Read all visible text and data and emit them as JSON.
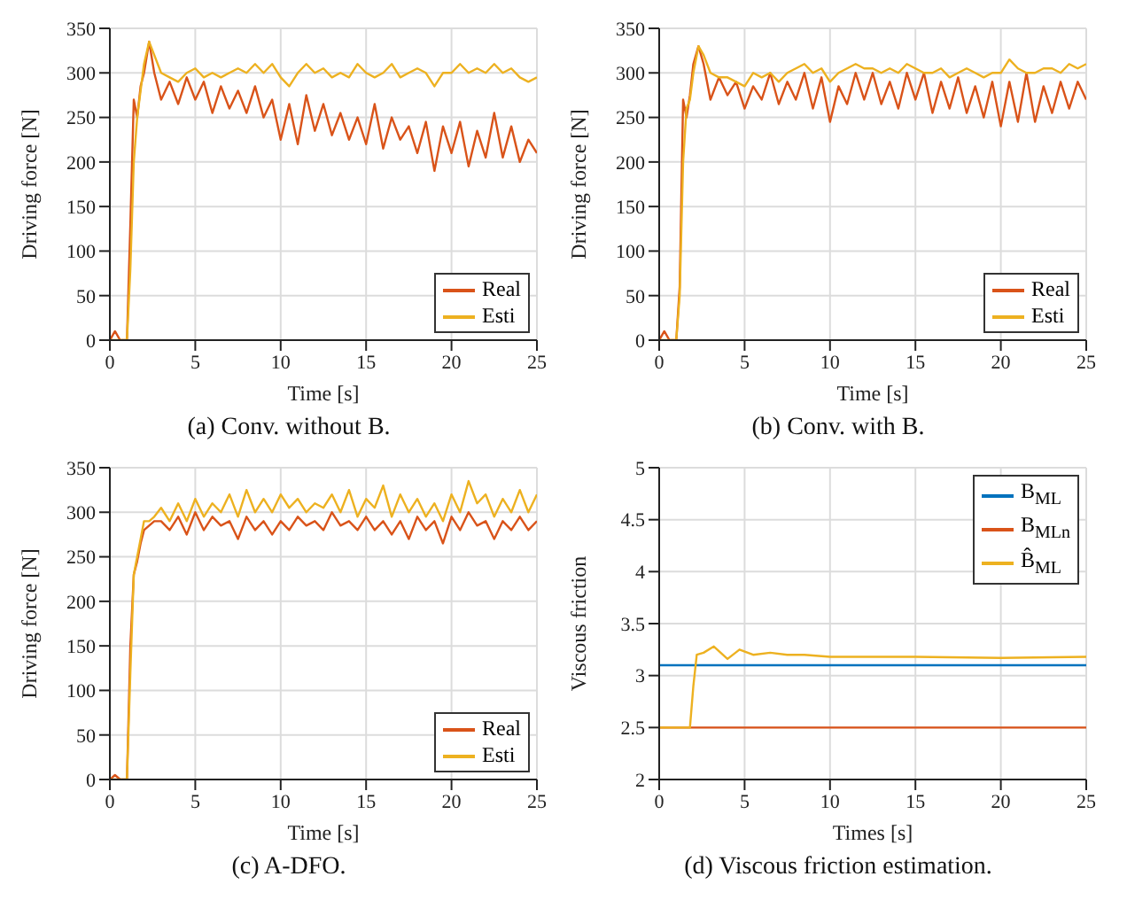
{
  "chart_data": [
    {
      "type": "line",
      "title": "(a) Conv. without B.",
      "xlabel": "Time [s]",
      "ylabel": "Driving force [N]",
      "xlim": [
        0,
        25
      ],
      "xticks": [
        0,
        5,
        10,
        15,
        20,
        25
      ],
      "ylim": [
        0,
        350
      ],
      "yticks": [
        0,
        50,
        100,
        150,
        200,
        250,
        300,
        350
      ],
      "grid": true,
      "legend": "bottom right",
      "x": [
        0,
        0.3,
        0.6,
        1.0,
        1.2,
        1.4,
        1.6,
        1.8,
        2.0,
        2.3,
        2.6,
        3.0,
        3.5,
        4.0,
        4.5,
        5.0,
        5.5,
        6.0,
        6.5,
        7.0,
        7.5,
        8.0,
        8.5,
        9.0,
        9.5,
        10.0,
        10.5,
        11.0,
        11.5,
        12.0,
        12.5,
        13.0,
        13.5,
        14.0,
        14.5,
        15.0,
        15.5,
        16.0,
        16.5,
        17.0,
        17.5,
        18.0,
        18.5,
        19.0,
        19.5,
        20.0,
        20.5,
        21.0,
        21.5,
        22.0,
        22.5,
        23.0,
        23.5,
        24.0,
        24.5,
        25.0
      ],
      "series": [
        {
          "name": "Real",
          "color": "#d95319",
          "values": [
            0,
            10,
            0,
            0,
            130,
            270,
            250,
            285,
            300,
            335,
            300,
            270,
            290,
            265,
            295,
            270,
            290,
            255,
            285,
            260,
            280,
            255,
            285,
            250,
            270,
            225,
            265,
            220,
            275,
            235,
            265,
            230,
            255,
            225,
            250,
            220,
            265,
            215,
            250,
            225,
            240,
            210,
            245,
            190,
            240,
            210,
            245,
            195,
            235,
            205,
            255,
            205,
            240,
            200,
            225,
            210
          ]
        },
        {
          "name": "Esti",
          "color": "#edb120",
          "values": [
            0,
            0,
            0,
            0,
            80,
            200,
            250,
            280,
            310,
            335,
            320,
            300,
            295,
            290,
            300,
            305,
            295,
            300,
            295,
            300,
            305,
            300,
            310,
            300,
            310,
            295,
            285,
            300,
            310,
            300,
            305,
            295,
            300,
            295,
            310,
            300,
            295,
            300,
            310,
            295,
            300,
            305,
            300,
            285,
            300,
            300,
            310,
            300,
            305,
            300,
            310,
            300,
            305,
            295,
            290,
            295
          ]
        }
      ]
    },
    {
      "type": "line",
      "title": "(b) Conv. with B.",
      "xlabel": "Time [s]",
      "ylabel": "Driving force [N]",
      "xlim": [
        0,
        25
      ],
      "xticks": [
        0,
        5,
        10,
        15,
        20,
        25
      ],
      "ylim": [
        0,
        350
      ],
      "yticks": [
        0,
        50,
        100,
        150,
        200,
        250,
        300,
        350
      ],
      "grid": true,
      "legend": "bottom right",
      "x": [
        0,
        0.3,
        0.6,
        1.0,
        1.2,
        1.4,
        1.6,
        1.8,
        2.0,
        2.3,
        2.6,
        3.0,
        3.5,
        4.0,
        4.5,
        5.0,
        5.5,
        6.0,
        6.5,
        7.0,
        7.5,
        8.0,
        8.5,
        9.0,
        9.5,
        10.0,
        10.5,
        11.0,
        11.5,
        12.0,
        12.5,
        13.0,
        13.5,
        14.0,
        14.5,
        15.0,
        15.5,
        16.0,
        16.5,
        17.0,
        17.5,
        18.0,
        18.5,
        19.0,
        19.5,
        20.0,
        20.5,
        21.0,
        21.5,
        22.0,
        22.5,
        23.0,
        23.5,
        24.0,
        24.5,
        25.0
      ],
      "series": [
        {
          "name": "Real",
          "color": "#d95319",
          "values": [
            0,
            10,
            0,
            0,
            60,
            270,
            250,
            275,
            310,
            330,
            310,
            270,
            295,
            275,
            290,
            260,
            285,
            270,
            300,
            265,
            290,
            270,
            300,
            260,
            295,
            245,
            285,
            265,
            300,
            270,
            300,
            265,
            290,
            260,
            300,
            270,
            300,
            255,
            290,
            260,
            295,
            255,
            285,
            250,
            290,
            240,
            290,
            245,
            300,
            245,
            285,
            255,
            290,
            260,
            290,
            270
          ]
        },
        {
          "name": "Esti",
          "color": "#edb120",
          "values": [
            0,
            0,
            0,
            0,
            50,
            200,
            260,
            270,
            300,
            330,
            320,
            300,
            295,
            295,
            290,
            285,
            300,
            295,
            300,
            290,
            300,
            305,
            310,
            300,
            305,
            290,
            300,
            305,
            310,
            305,
            305,
            300,
            305,
            300,
            310,
            305,
            300,
            300,
            305,
            295,
            300,
            305,
            300,
            295,
            300,
            300,
            315,
            305,
            300,
            300,
            305,
            305,
            300,
            310,
            305,
            310
          ]
        }
      ]
    },
    {
      "type": "line",
      "title": "(c) A-DFO.",
      "xlabel": "Time [s]",
      "ylabel": "Driving force [N]",
      "xlim": [
        0,
        25
      ],
      "xticks": [
        0,
        5,
        10,
        15,
        20,
        25
      ],
      "ylim": [
        0,
        350
      ],
      "yticks": [
        0,
        50,
        100,
        150,
        200,
        250,
        300,
        350
      ],
      "grid": true,
      "legend": "bottom right",
      "x": [
        0,
        0.3,
        0.6,
        1.0,
        1.2,
        1.4,
        1.6,
        1.8,
        2.0,
        2.3,
        2.6,
        3.0,
        3.5,
        4.0,
        4.5,
        5.0,
        5.5,
        6.0,
        6.5,
        7.0,
        7.5,
        8.0,
        8.5,
        9.0,
        9.5,
        10.0,
        10.5,
        11.0,
        11.5,
        12.0,
        12.5,
        13.0,
        13.5,
        14.0,
        14.5,
        15.0,
        15.5,
        16.0,
        16.5,
        17.0,
        17.5,
        18.0,
        18.5,
        19.0,
        19.5,
        20.0,
        20.5,
        21.0,
        21.5,
        22.0,
        22.5,
        23.0,
        23.5,
        24.0,
        24.5,
        25.0
      ],
      "series": [
        {
          "name": "Real",
          "color": "#d95319",
          "values": [
            0,
            5,
            0,
            0,
            150,
            230,
            245,
            265,
            280,
            285,
            290,
            290,
            280,
            295,
            275,
            300,
            280,
            295,
            285,
            290,
            270,
            295,
            280,
            290,
            275,
            290,
            280,
            295,
            285,
            290,
            280,
            300,
            285,
            290,
            280,
            295,
            280,
            290,
            275,
            290,
            270,
            295,
            280,
            290,
            265,
            295,
            280,
            300,
            285,
            290,
            270,
            290,
            280,
            295,
            280,
            290
          ]
        },
        {
          "name": "Esti",
          "color": "#edb120",
          "values": [
            0,
            0,
            0,
            0,
            120,
            230,
            250,
            270,
            290,
            290,
            295,
            305,
            290,
            310,
            290,
            315,
            295,
            310,
            300,
            320,
            295,
            325,
            300,
            315,
            300,
            320,
            305,
            315,
            300,
            310,
            305,
            320,
            300,
            325,
            295,
            315,
            305,
            330,
            295,
            320,
            300,
            315,
            295,
            310,
            290,
            320,
            300,
            335,
            310,
            320,
            295,
            315,
            300,
            325,
            300,
            320
          ]
        }
      ]
    },
    {
      "type": "line",
      "title": "(d) Viscous friction estimation.",
      "xlabel": "Times [s]",
      "ylabel": "Viscous friction",
      "xlim": [
        0,
        25
      ],
      "xticks": [
        0,
        5,
        10,
        15,
        20,
        25
      ],
      "ylim": [
        2,
        5
      ],
      "yticks": [
        2,
        2.5,
        3,
        3.5,
        4,
        4.5,
        5
      ],
      "grid": true,
      "legend": "top right",
      "x": [
        0,
        1.8,
        2.0,
        2.2,
        2.6,
        3.2,
        3.6,
        4.0,
        4.7,
        5.5,
        6.5,
        7.5,
        8.5,
        10,
        15,
        20,
        25
      ],
      "series": [
        {
          "name": "B$_{ML}$",
          "color": "#0072bd",
          "values": [
            3.1,
            3.1,
            3.1,
            3.1,
            3.1,
            3.1,
            3.1,
            3.1,
            3.1,
            3.1,
            3.1,
            3.1,
            3.1,
            3.1,
            3.1,
            3.1,
            3.1
          ]
        },
        {
          "name": "B$_{MLn}$",
          "color": "#d95319",
          "values": [
            2.5,
            2.5,
            2.5,
            2.5,
            2.5,
            2.5,
            2.5,
            2.5,
            2.5,
            2.5,
            2.5,
            2.5,
            2.5,
            2.5,
            2.5,
            2.5,
            2.5
          ]
        },
        {
          "name": "B̂$_{ML}$",
          "color": "#edb120",
          "values": [
            2.5,
            2.5,
            2.9,
            3.2,
            3.22,
            3.28,
            3.22,
            3.16,
            3.25,
            3.2,
            3.22,
            3.2,
            3.2,
            3.18,
            3.18,
            3.17,
            3.18
          ]
        }
      ]
    }
  ]
}
